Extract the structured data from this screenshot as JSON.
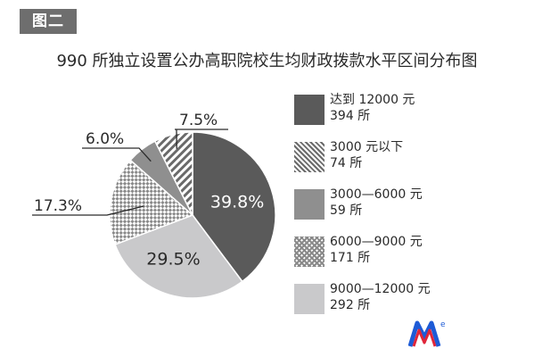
{
  "badge": "图二",
  "chart_data": {
    "type": "pie",
    "title": "990 所独立设置公办高职院校生均财政拨款水平区间分布图",
    "slices": [
      {
        "label": "达到 12000 元",
        "count_label": "394 所",
        "value": 39.8,
        "value_label": "39.8%",
        "color": "#5a5a5a",
        "pattern": "solid"
      },
      {
        "label": "9000—12000 元",
        "count_label": "292 所",
        "value": 29.5,
        "value_label": "29.5%",
        "color": "#c9c9cb",
        "pattern": "solid"
      },
      {
        "label": "6000—9000 元",
        "count_label": "171 所",
        "value": 17.3,
        "value_label": "17.3%",
        "color": "#8a8a8a",
        "pattern": "checker"
      },
      {
        "label": "3000—6000 元",
        "count_label": "59 所",
        "value": 6.0,
        "value_label": "6.0%",
        "color": "#8f8f8f",
        "pattern": "solid"
      },
      {
        "label": "3000 元以下",
        "count_label": "74 所",
        "value": 7.5,
        "value_label": "7.5%",
        "color": "#6a6a6a",
        "pattern": "hatch"
      }
    ]
  },
  "legend_order": [
    0,
    4,
    3,
    2,
    1
  ]
}
